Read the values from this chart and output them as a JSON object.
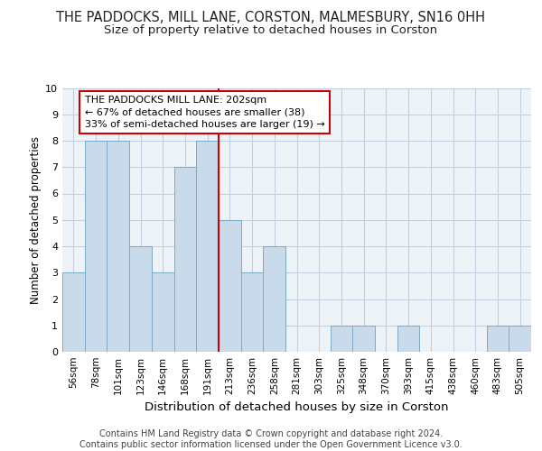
{
  "title": "THE PADDOCKS, MILL LANE, CORSTON, MALMESBURY, SN16 0HH",
  "subtitle": "Size of property relative to detached houses in Corston",
  "xlabel": "Distribution of detached houses by size in Corston",
  "ylabel": "Number of detached properties",
  "categories": [
    "56sqm",
    "78sqm",
    "101sqm",
    "123sqm",
    "146sqm",
    "168sqm",
    "191sqm",
    "213sqm",
    "236sqm",
    "258sqm",
    "281sqm",
    "303sqm",
    "325sqm",
    "348sqm",
    "370sqm",
    "393sqm",
    "415sqm",
    "438sqm",
    "460sqm",
    "483sqm",
    "505sqm"
  ],
  "values": [
    3,
    8,
    8,
    4,
    3,
    7,
    8,
    5,
    3,
    4,
    0,
    0,
    1,
    1,
    0,
    1,
    0,
    0,
    0,
    1,
    1
  ],
  "bar_color": "#c9daea",
  "bar_edge_color": "#7aaac8",
  "vline_color": "#cc0000",
  "vline_pos": 7,
  "annotation_text": "THE PADDOCKS MILL LANE: 202sqm\n← 67% of detached houses are smaller (38)\n33% of semi-detached houses are larger (19) →",
  "annotation_box_edge_color": "#cc0000",
  "ylim": [
    0,
    10
  ],
  "yticks": [
    0,
    1,
    2,
    3,
    4,
    5,
    6,
    7,
    8,
    9,
    10
  ],
  "footer_text": "Contains HM Land Registry data © Crown copyright and database right 2024.\nContains public sector information licensed under the Open Government Licence v3.0.",
  "grid_color": "#c0d0e0",
  "bg_color": "#eef3f8",
  "title_fontsize": 10.5,
  "subtitle_fontsize": 9.5,
  "xlabel_fontsize": 9.5,
  "ylabel_fontsize": 8.5,
  "tick_fontsize": 7.5,
  "footer_fontsize": 7,
  "annotation_fontsize": 8
}
